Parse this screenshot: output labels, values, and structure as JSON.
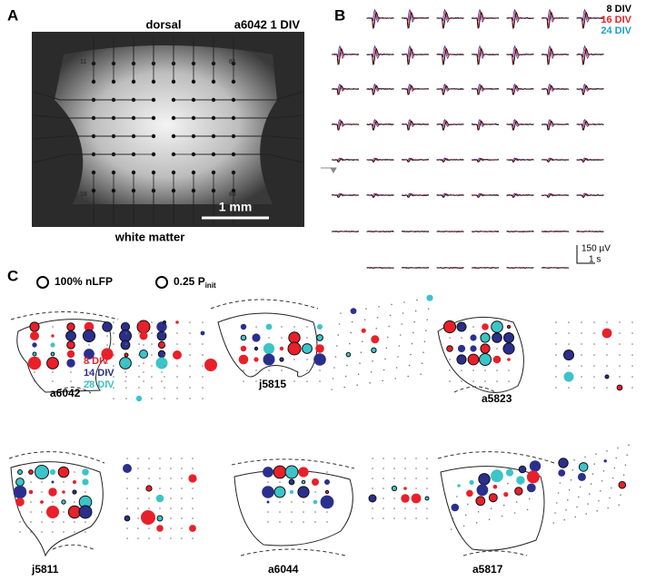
{
  "panel_a": {
    "label": "A",
    "top_label": "dorsal",
    "sample_label": "a6042 1 DIV",
    "scale_bar": "1 mm",
    "bottom_label": "white matter",
    "electrode_labels": [
      "11",
      "81",
      "18",
      "88"
    ]
  },
  "panel_b": {
    "label": "B",
    "legend": [
      {
        "name": "8 DIV",
        "color": "#000000"
      },
      {
        "name": "16 DIV",
        "color": "#e8202a"
      },
      {
        "name": "24 DIV",
        "color": "#1aa0c8"
      }
    ],
    "scale_voltage": "150 µV",
    "scale_time": "1 s"
  },
  "panel_c": {
    "label": "C",
    "size_legend": [
      {
        "label": "100% nLFP"
      },
      {
        "label": "0.25 P",
        "subscript": "init"
      }
    ],
    "legend": [
      {
        "name": "8 DIV",
        "color": "#e8202a"
      },
      {
        "name": "14 DIV",
        "color": "#2a2f8c"
      },
      {
        "name": "28 DIV",
        "color": "#3cc4c8"
      }
    ],
    "samples": [
      "a6042",
      "j5815",
      "a5823",
      "j5811",
      "a6044",
      "a5817"
    ]
  }
}
